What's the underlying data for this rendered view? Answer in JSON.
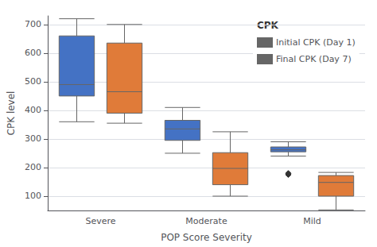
{
  "chart_data": {
    "type": "boxplot",
    "xlabel": "POP Score Severity",
    "ylabel": "CPK level",
    "legend_title": "CPK",
    "categories": [
      "Severe",
      "Moderate",
      "Mild"
    ],
    "series": [
      {
        "name": "Initial CPK (Day 1)",
        "color": "#4472c4",
        "values": [
          [
            360,
            450,
            490,
            660,
            720
          ],
          [
            250,
            295,
            335,
            365,
            410
          ],
          [
            240,
            255,
            262,
            272,
            290
          ]
        ],
        "fliers": [
          [],
          [],
          [
            175,
            180
          ]
        ]
      },
      {
        "name": "Final CPK (Day 7)",
        "color": "#e07b39",
        "values": [
          [
            355,
            390,
            465,
            635,
            700
          ],
          [
            100,
            140,
            197,
            252,
            325
          ],
          [
            52,
            100,
            148,
            172,
            183
          ]
        ],
        "fliers": [
          [],
          [],
          []
        ]
      }
    ],
    "ylim": [
      50,
      730
    ],
    "yticks": [
      100,
      200,
      300,
      400,
      500,
      600,
      700
    ],
    "grid": true,
    "legend": "upper right",
    "marker": "diamond"
  }
}
